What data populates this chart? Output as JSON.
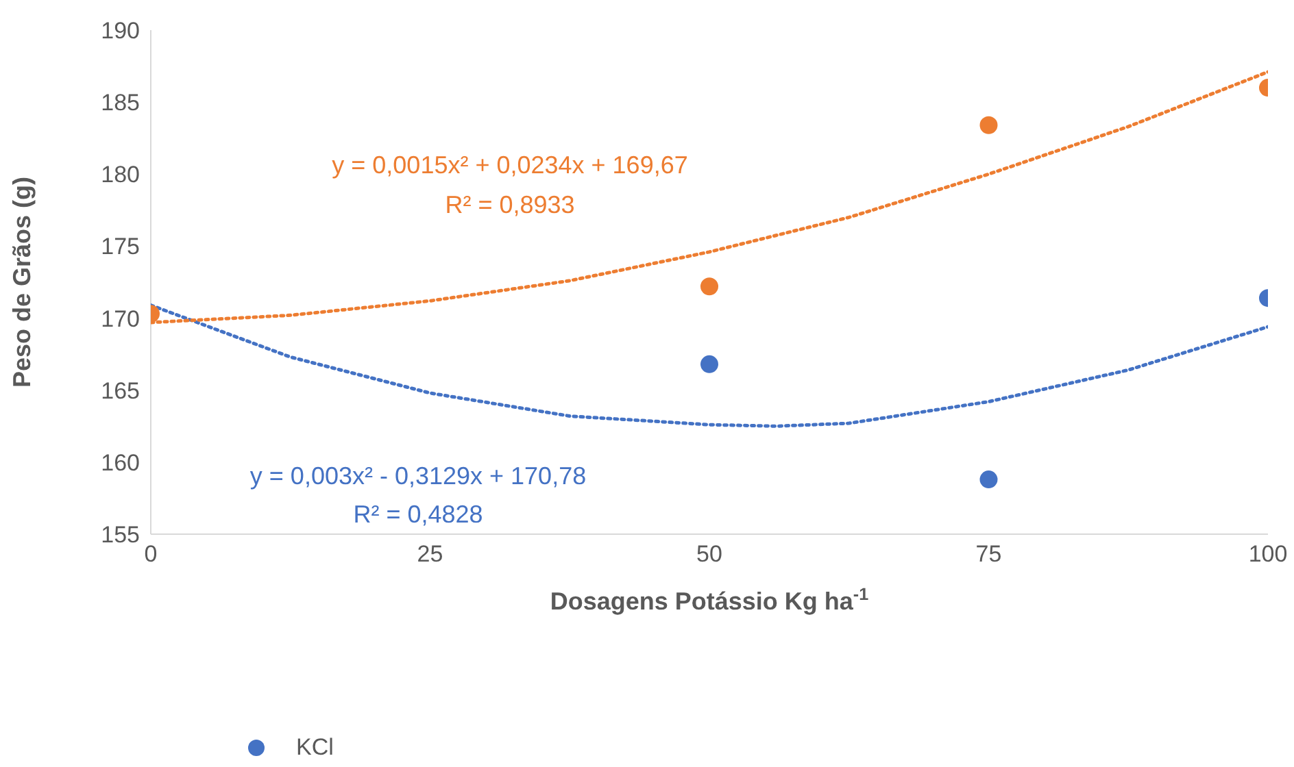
{
  "chart_data": {
    "type": "scatter",
    "xlabel": "Dosagens Potássio Kg ha$^{-1}$",
    "ylabel": "Peso de Grãos (g)",
    "xlim": [
      0,
      100
    ],
    "xticks": [
      0,
      25,
      50,
      75,
      100
    ],
    "ylim": [
      155,
      190
    ],
    "yticks": [
      155,
      160,
      165,
      170,
      175,
      180,
      185,
      190
    ],
    "grid": false,
    "legend": "bottom",
    "marker": "circle",
    "series": [
      {
        "name": "KCl",
        "color": "#4472c4",
        "x": [
          50,
          75,
          100
        ],
        "values": [
          166.8,
          158.8,
          171.4
        ]
      },
      {
        "color": "#ed7d31",
        "x": [
          0,
          50,
          75,
          100
        ],
        "values": [
          170.3,
          172.2,
          183.4,
          186.0
        ]
      },
      {
        "type": "line",
        "color": "#4472c4",
        "marker": "none",
        "line_style": "dotted",
        "x": [
          0,
          12.5,
          25,
          37.5,
          50,
          56,
          62.5,
          75,
          87.5,
          100
        ],
        "values": [
          170.9,
          167.3,
          164.8,
          163.2,
          162.6,
          162.5,
          162.7,
          164.2,
          166.4,
          169.4
        ]
      },
      {
        "type": "line",
        "color": "#ed7d31",
        "marker": "none",
        "line_style": "dotted",
        "x": [
          0,
          12.5,
          25,
          37.5,
          50,
          62.5,
          75,
          87.5,
          100
        ],
        "values": [
          169.7,
          170.2,
          171.2,
          172.6,
          174.6,
          177.0,
          180.0,
          183.3,
          187.1
        ]
      }
    ],
    "annotations": [
      "y = 0,0015x² + 0,0234x + 169,67",
      "R² = 0,8933",
      "y = 0,003x² - 0,3129x + 170,78",
      "R² = 0,4828"
    ]
  }
}
